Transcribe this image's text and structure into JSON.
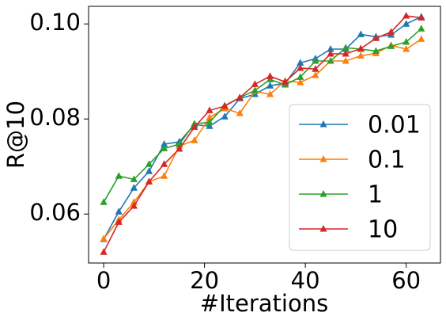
{
  "chart_data": {
    "type": "line",
    "x_label": "#Iterations",
    "y_label": "R@10",
    "x": [
      0,
      3,
      6,
      9,
      12,
      15,
      18,
      21,
      24,
      27,
      30,
      33,
      36,
      39,
      42,
      45,
      48,
      51,
      54,
      57,
      60,
      63
    ],
    "series": [
      {
        "name": "0.01",
        "color": "#1f77b4",
        "values": [
          0.0547,
          0.0605,
          0.0655,
          0.069,
          0.0747,
          0.0752,
          0.0788,
          0.0785,
          0.0805,
          0.0843,
          0.0852,
          0.087,
          0.0875,
          0.0918,
          0.0927,
          0.0947,
          0.0947,
          0.0978,
          0.0973,
          0.0977,
          0.1,
          0.1015
        ]
      },
      {
        "name": "0.1",
        "color": "#ff7f0e",
        "values": [
          0.0548,
          0.0588,
          0.0625,
          0.0668,
          0.068,
          0.0743,
          0.0755,
          0.0803,
          0.0822,
          0.0812,
          0.0858,
          0.0852,
          0.088,
          0.0877,
          0.0892,
          0.0922,
          0.0922,
          0.0933,
          0.0938,
          0.0955,
          0.0947,
          0.0968
        ]
      },
      {
        "name": "1",
        "color": "#2ca02c",
        "values": [
          0.0625,
          0.068,
          0.0673,
          0.0705,
          0.0738,
          0.0747,
          0.079,
          0.0793,
          0.0828,
          0.0845,
          0.086,
          0.0883,
          0.0872,
          0.0888,
          0.0922,
          0.0922,
          0.095,
          0.0947,
          0.0943,
          0.0953,
          0.0962,
          0.099
        ]
      },
      {
        "name": "10",
        "color": "#d62728",
        "values": [
          0.052,
          0.0583,
          0.0617,
          0.0668,
          0.0705,
          0.0737,
          0.0783,
          0.0818,
          0.0827,
          0.0845,
          0.0873,
          0.089,
          0.0878,
          0.0907,
          0.0905,
          0.0937,
          0.0937,
          0.0948,
          0.097,
          0.0983,
          0.1017,
          0.1013
        ]
      }
    ],
    "xlim": [
      -3,
      66.8
    ],
    "ylim": [
      0.0497,
      0.1037
    ],
    "xticks": [
      0,
      20,
      40,
      60
    ],
    "yticks": [
      0.06,
      0.08,
      {
        "value": 0.1,
        "label": "0.10"
      }
    ],
    "legend": "lower right",
    "grid": false
  }
}
